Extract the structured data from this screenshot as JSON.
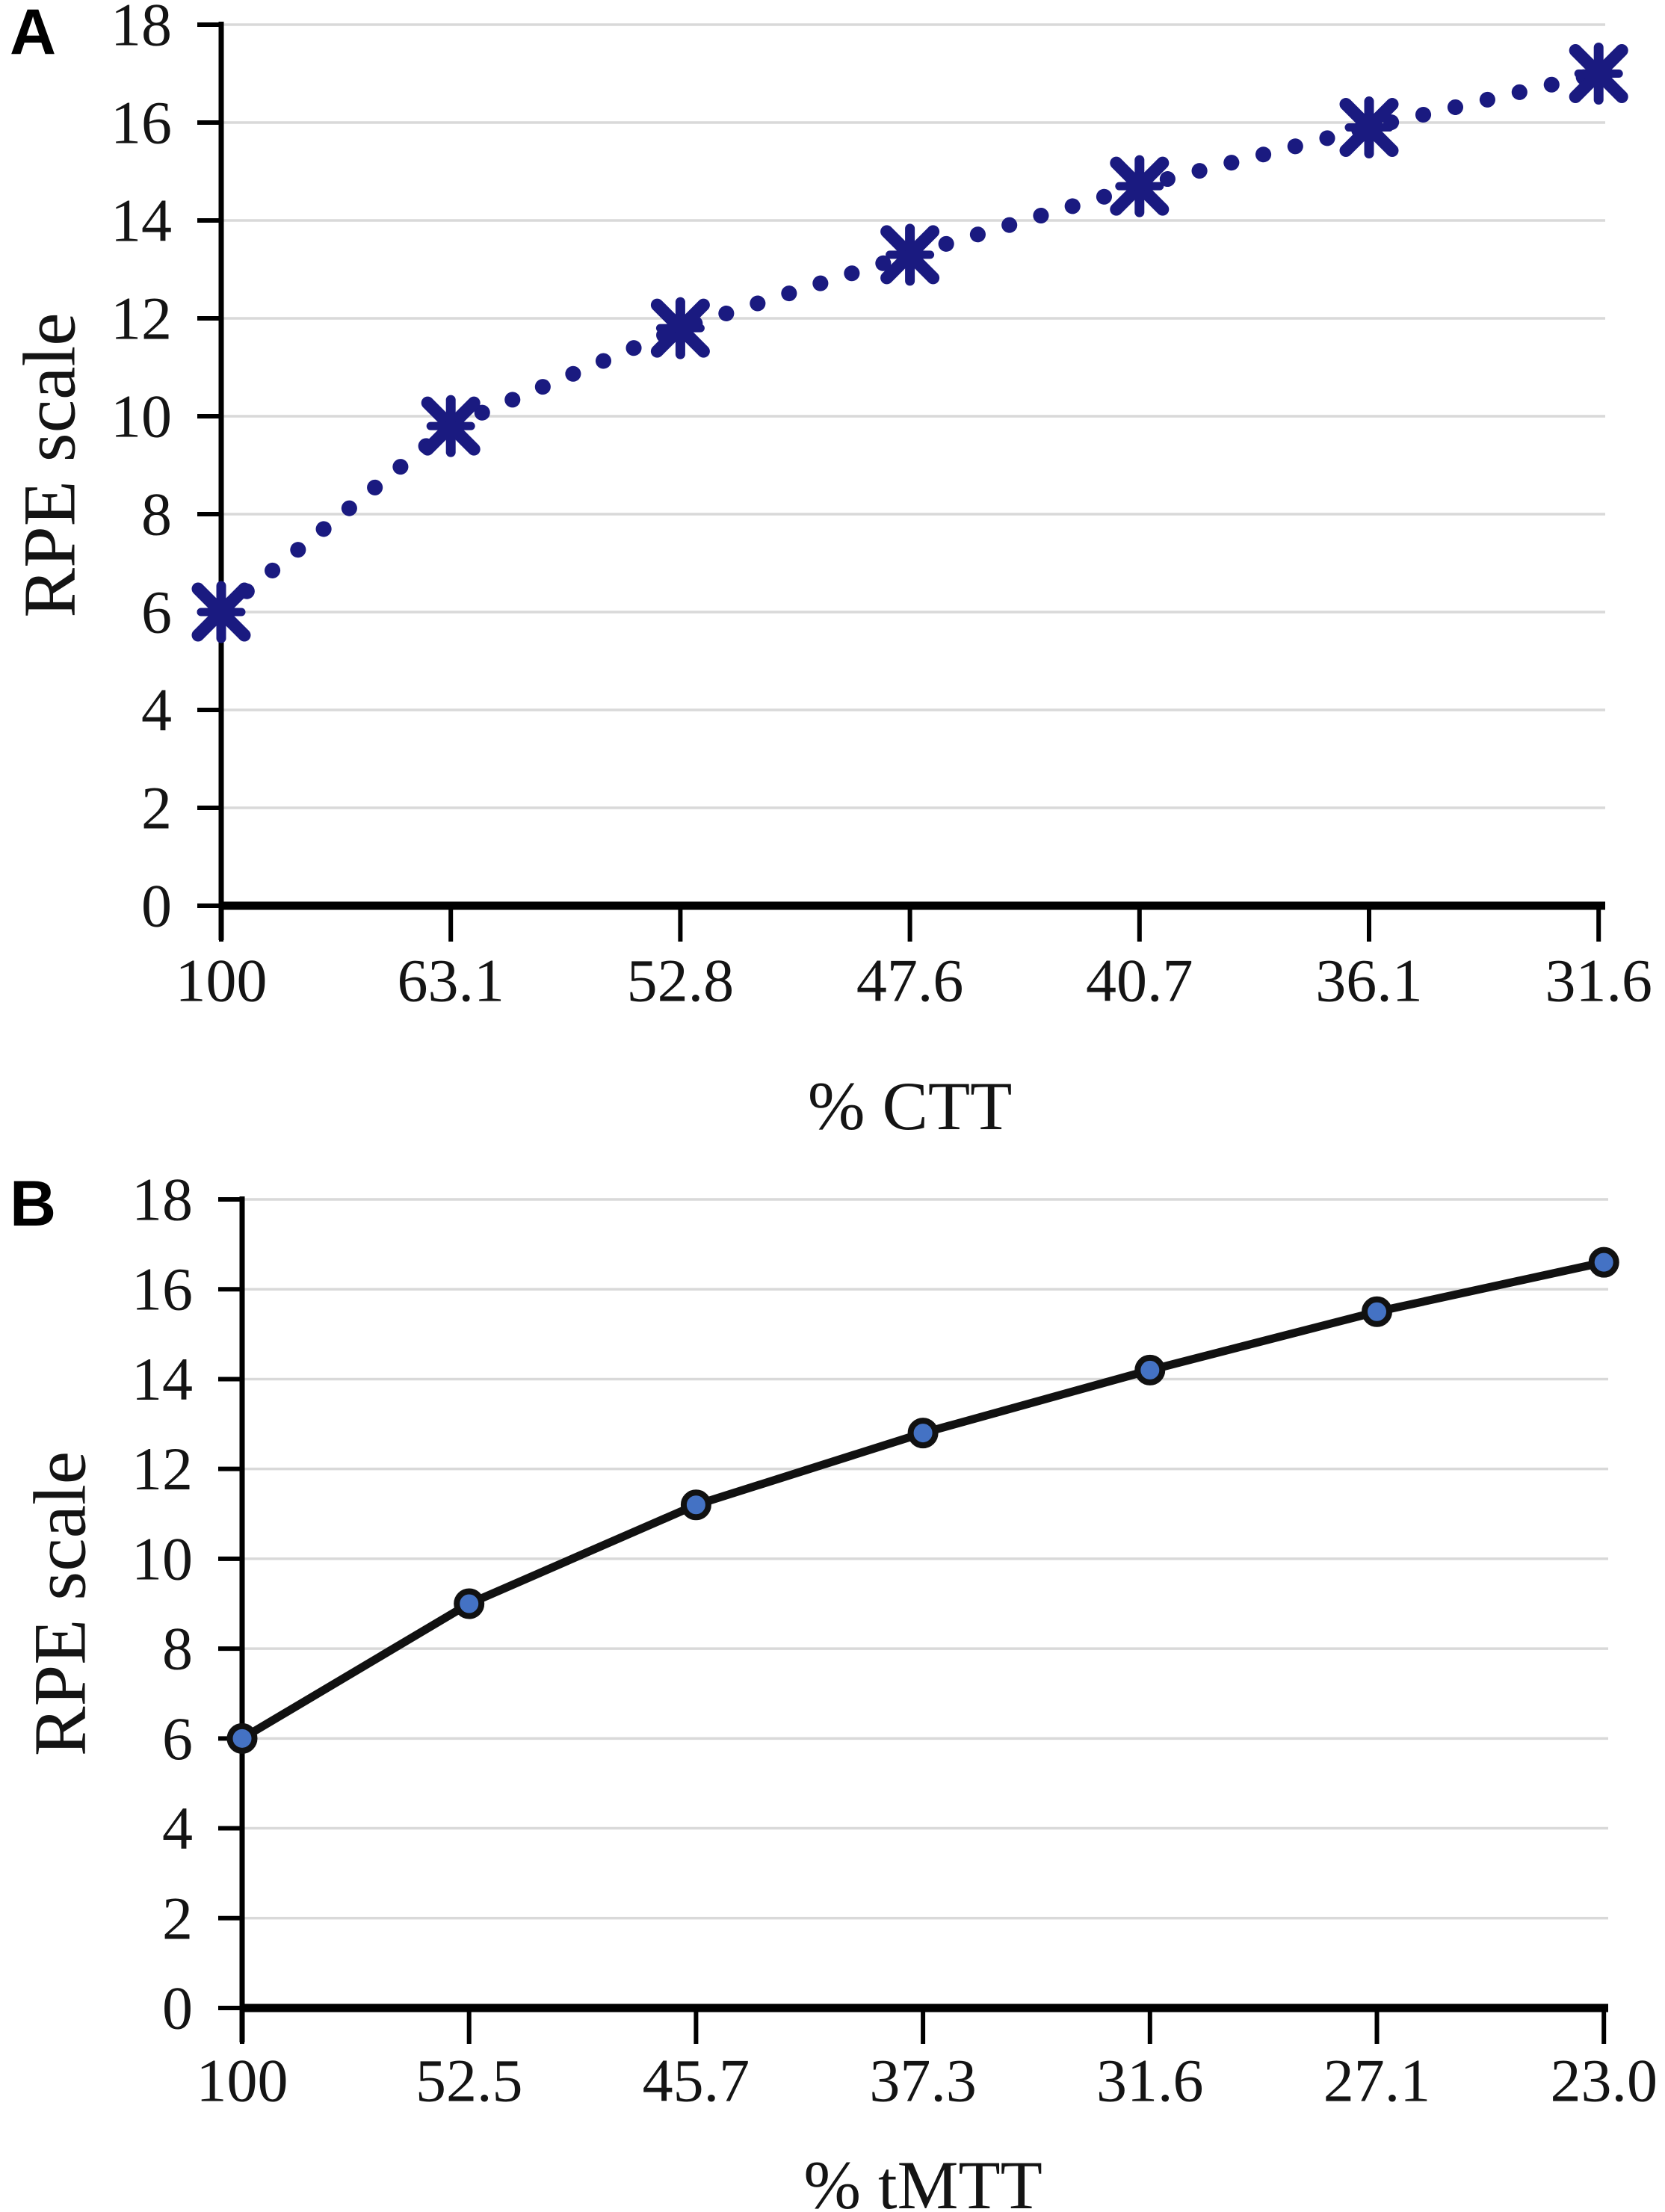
{
  "styles": {
    "background": "#ffffff",
    "gridline_color": "#d9d9d9",
    "axis_color": "#000000",
    "text_color": "#141414",
    "panel_a_series_color": "#1a1a80",
    "panel_b_line_color": "#111111",
    "panel_b_marker_fill": "#4472c4"
  },
  "chart_data": [
    {
      "panel": "A",
      "type": "line",
      "title": "",
      "xlabel": "% CTT",
      "ylabel": "RPE scale",
      "categories": [
        "100",
        "63.1",
        "52.8",
        "47.6",
        "40.7",
        "36.1",
        "31.6"
      ],
      "values": [
        6.0,
        9.8,
        11.8,
        13.3,
        14.7,
        15.9,
        17.0
      ],
      "yticks": [
        "0",
        "2",
        "4",
        "6",
        "8",
        "10",
        "12",
        "14",
        "16",
        "18"
      ],
      "ylim": [
        0,
        18
      ],
      "ytick_step": 2,
      "grid": "horizontal-on",
      "legend": "none",
      "line_style": "dotted",
      "marker": "x-cross",
      "line_color": "#1a1a80",
      "marker_color": "#1a1a80",
      "marker_stroke": "#1a1a80"
    },
    {
      "panel": "B",
      "type": "line",
      "title": "",
      "xlabel": "% tMTT",
      "ylabel": "RPE scale",
      "categories": [
        "100",
        "52.5",
        "45.7",
        "37.3",
        "31.6",
        "27.1",
        "23.0"
      ],
      "values": [
        6.0,
        9.0,
        11.2,
        12.8,
        14.2,
        15.5,
        16.6
      ],
      "yticks": [
        "0",
        "2",
        "4",
        "6",
        "8",
        "10",
        "12",
        "14",
        "16",
        "18"
      ],
      "ylim": [
        0,
        18
      ],
      "ytick_step": 2,
      "grid": "horizontal-on",
      "legend": "none",
      "line_style": "solid",
      "marker": "circle",
      "line_color": "#111111",
      "marker_color": "#4472c4",
      "marker_stroke": "#111111"
    }
  ]
}
